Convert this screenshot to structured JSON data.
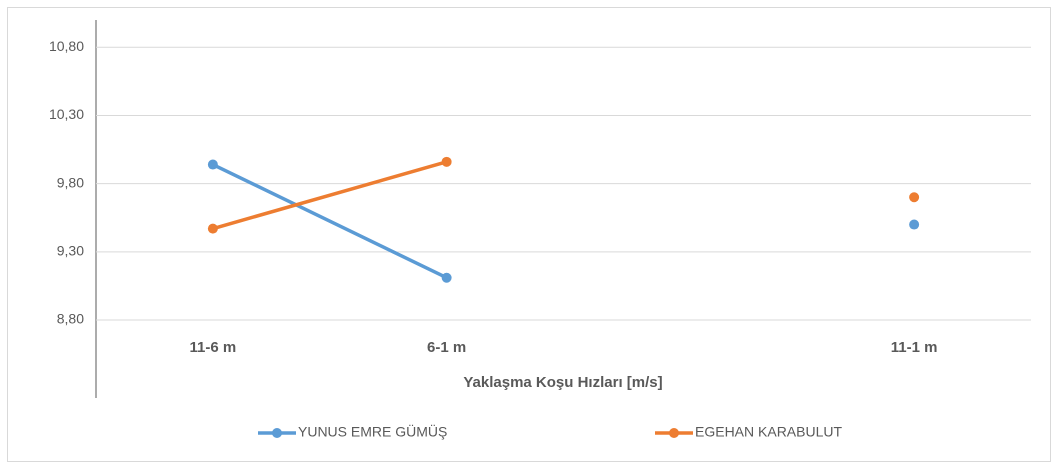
{
  "chart_data": {
    "type": "line",
    "x_label": "Yaklaşma Koşu Hızları [m/s]",
    "categories": [
      "11-6 m",
      "6-1 m",
      null,
      "11-1 m"
    ],
    "series": [
      {
        "name": "YUNUS EMRE GÜMÜŞ",
        "color": "#5b9bd5",
        "values": [
          9.94,
          9.11,
          null,
          9.5
        ]
      },
      {
        "name": "EGEHAN KARABULUT",
        "color": "#ed7d31",
        "values": [
          9.47,
          9.96,
          null,
          9.7
        ]
      }
    ],
    "ylim": [
      8.8,
      11.0
    ],
    "yticks": [
      {
        "value": 8.8,
        "label": "8,80"
      },
      {
        "value": 9.3,
        "label": "9,30"
      },
      {
        "value": 9.8,
        "label": "9,80"
      },
      {
        "value": 10.3,
        "label": "10,30"
      },
      {
        "value": 10.8,
        "label": "10,80"
      }
    ],
    "grid": true,
    "legend": "bottom"
  }
}
